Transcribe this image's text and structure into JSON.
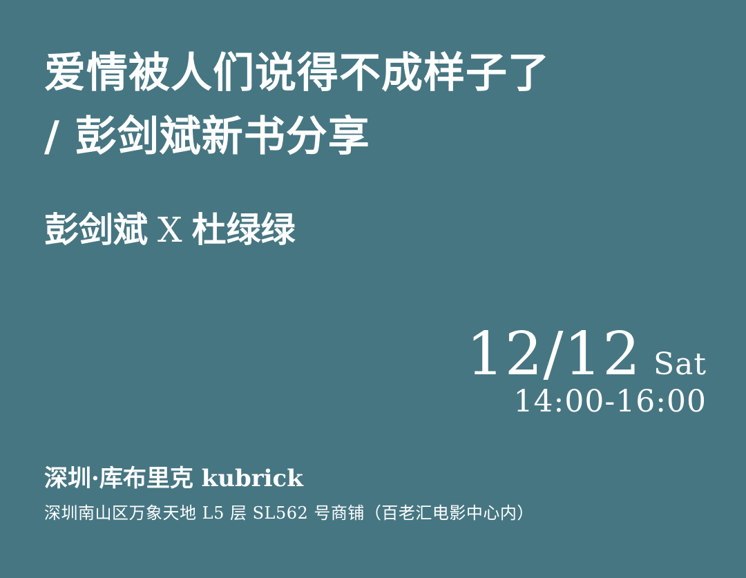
{
  "background_color": "#467682",
  "text_color": "#ffffff",
  "title": {
    "line1": "爱情被人们说得不成样子了",
    "line2": "/ 彭剑斌新书分享"
  },
  "speakers": {
    "first": "彭剑斌",
    "separator": "X",
    "second": "杜绿绿"
  },
  "event": {
    "date": "12/12",
    "day": "Sat",
    "time": "14:00-16:00"
  },
  "venue": {
    "name": "深圳·库布里克 kubrick",
    "address": "深圳南山区万象天地 L5 层 SL562 号商铺（百老汇电影中心内）"
  }
}
